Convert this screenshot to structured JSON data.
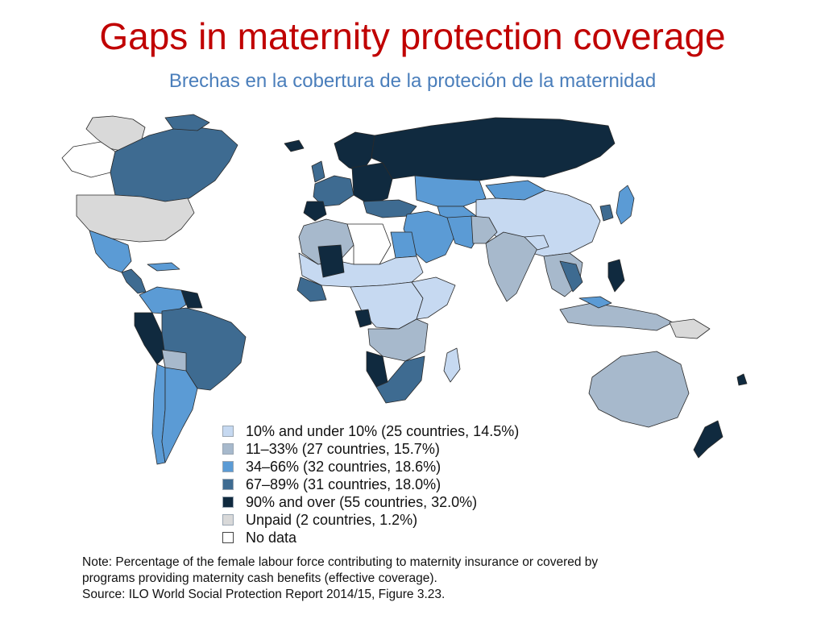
{
  "title": "Gaps in maternity protection coverage",
  "subtitle": "Brechas en la cobertura de la proteción de la maternidad",
  "map": {
    "outline_color": "#2a2a2a"
  },
  "legend": [
    {
      "label": "10% and under 10% (25 countries, 14.5%)",
      "color": "#c6d9f1"
    },
    {
      "label": "11–33% (27 countries, 15.7%)",
      "color": "#a7b9cc"
    },
    {
      "label": "34–66% (32 countries, 18.6%)",
      "color": "#5b9bd5"
    },
    {
      "label": "67–89% (31 countries, 18.0%)",
      "color": "#3e6b91"
    },
    {
      "label": "90% and over (55 countries, 32.0%)",
      "color": "#102a3f"
    },
    {
      "label": "Unpaid (2 countries, 1.2%)",
      "color": "#d9d9d9"
    },
    {
      "label": "No data",
      "color": "#ffffff"
    }
  ],
  "note": {
    "line1": "Note: Percentage of the female labour force contributing to maternity insurance or covered by",
    "line2": "programs providing maternity cash benefits (effective coverage).",
    "line3": "Source: ILO World Social Protection Report 2014/15, Figure 3.23."
  }
}
